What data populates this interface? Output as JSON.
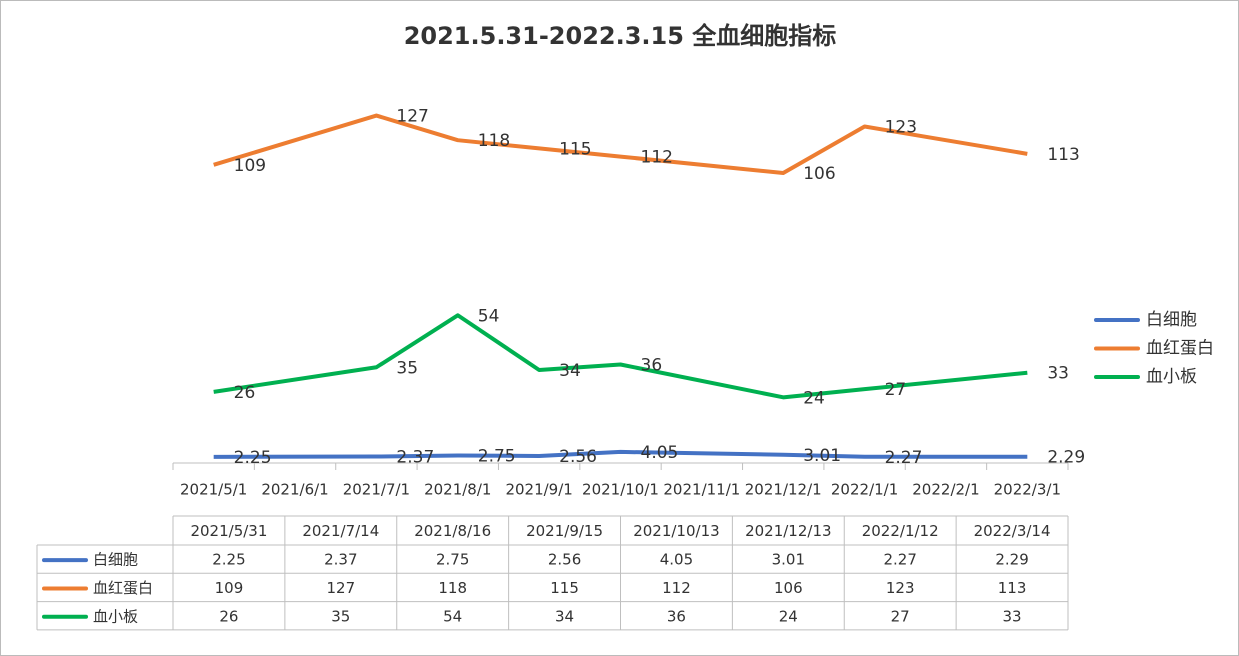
{
  "chart_data": {
    "type": "line",
    "title": "2021.5.31-2022.3.15 全血细胞指标",
    "x": [
      "2021/5/31",
      "2021/7/14",
      "2021/8/16",
      "2021/9/15",
      "2021/10/13",
      "2021/12/13",
      "2022/1/12",
      "2022/3/14"
    ],
    "xticks": [
      "2021/5/1",
      "2021/6/1",
      "2021/7/1",
      "2021/8/1",
      "2021/9/1",
      "2021/10/1",
      "2021/11/1",
      "2021/12/1",
      "2022/1/1",
      "2022/2/1",
      "2022/3/1"
    ],
    "ylim": [
      0,
      140
    ],
    "grid": false,
    "legend": "right",
    "series": [
      {
        "name": "白细胞",
        "color": "#4472c4",
        "values": [
          2.25,
          2.37,
          2.75,
          2.56,
          4.05,
          3.01,
          2.27,
          2.29
        ]
      },
      {
        "name": "血红蛋白",
        "color": "#ed7d31",
        "values": [
          109,
          127,
          118,
          115,
          112,
          106,
          123,
          113
        ]
      },
      {
        "name": "血小板",
        "color": "#00b050",
        "values": [
          26,
          35,
          54,
          34,
          36,
          24,
          27,
          33
        ]
      }
    ]
  }
}
